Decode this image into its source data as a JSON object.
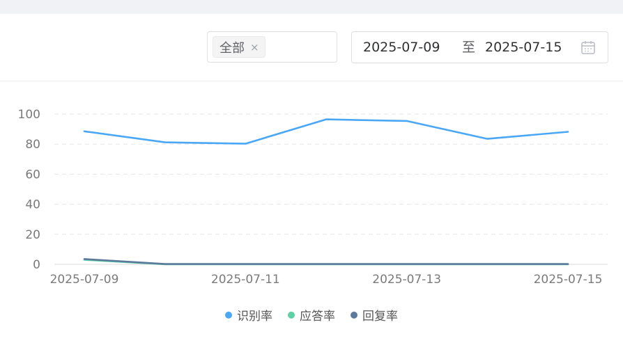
{
  "filter": {
    "selected_tag": "全部",
    "tag_close": "×"
  },
  "date_range": {
    "start": "2025-07-09",
    "separator": "至",
    "end": "2025-07-15"
  },
  "icons": {
    "tag_close": "close-icon",
    "date": "calendar-icon"
  },
  "chart_data": {
    "type": "line",
    "x": [
      "2025-07-09",
      "2025-07-10",
      "2025-07-11",
      "2025-07-12",
      "2025-07-13",
      "2025-07-14",
      "2025-07-15"
    ],
    "x_tick_labels": [
      "2025-07-09",
      "2025-07-11",
      "2025-07-13",
      "2025-07-15"
    ],
    "y_ticks": [
      0,
      20,
      40,
      60,
      80,
      100
    ],
    "ylim": [
      0,
      100
    ],
    "grid": true,
    "legend_position": "bottom-center",
    "series": [
      {
        "name": "识别率",
        "color": "#4aa7f5",
        "values": [
          88.5,
          81.2,
          80.3,
          96.5,
          95.4,
          83.5,
          88.2
        ]
      },
      {
        "name": "应答率",
        "color": "#5dd1a5",
        "values": [
          3.0,
          0.0,
          0.0,
          0.0,
          0.0,
          0.0,
          0.0
        ]
      },
      {
        "name": "回复率",
        "color": "#5c7a9b",
        "values": [
          3.5,
          0.2,
          0.2,
          0.2,
          0.2,
          0.2,
          0.2
        ]
      }
    ]
  }
}
